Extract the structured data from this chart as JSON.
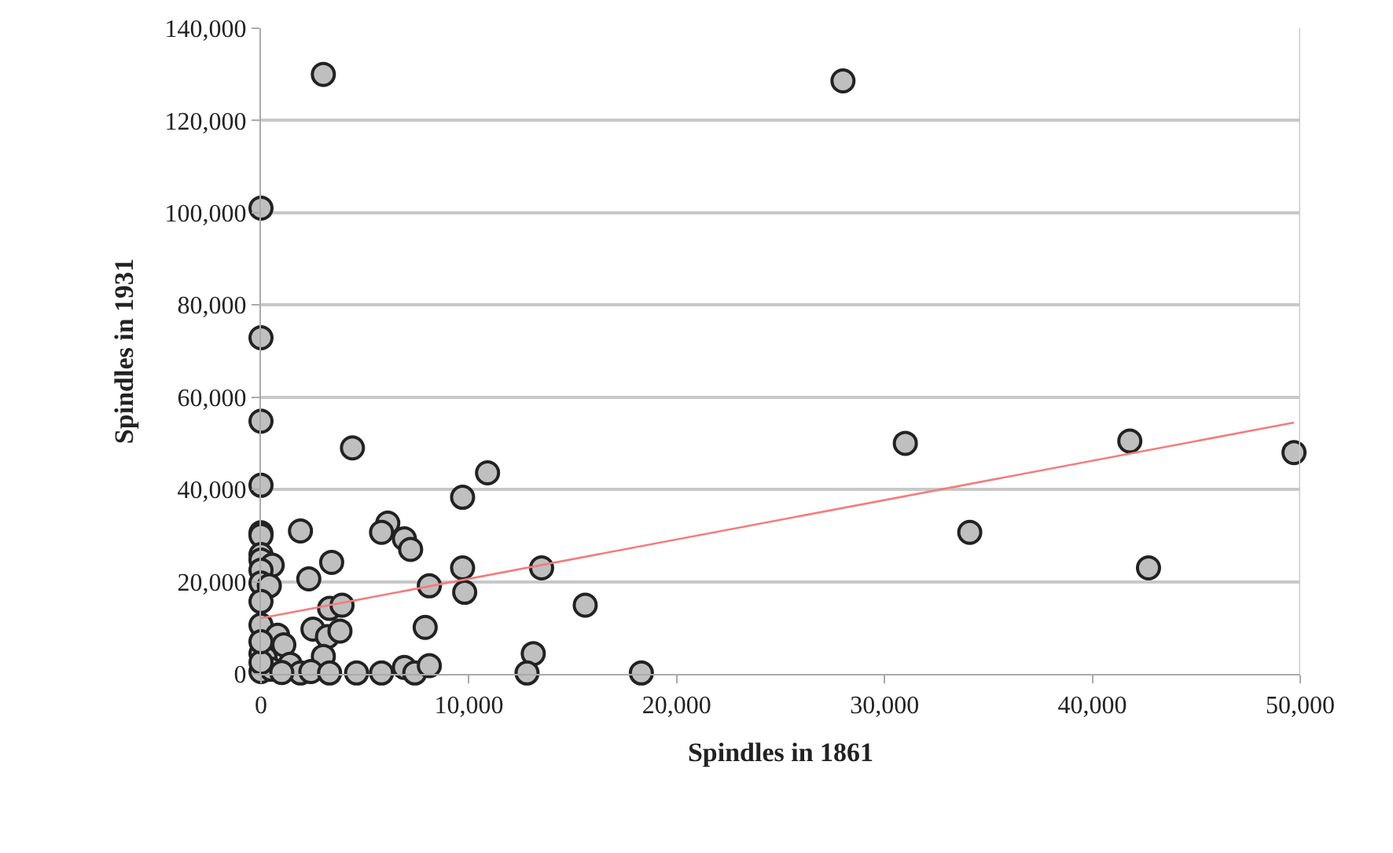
{
  "chart_data": {
    "type": "scatter",
    "xlabel": "Spindles in 1861",
    "ylabel": "Spindles in 1931",
    "xlim": [
      0,
      50000
    ],
    "ylim": [
      0,
      140000
    ],
    "xticks": [
      0,
      {
        "value": 10000,
        "label": "10,000"
      },
      {
        "value": 20000,
        "label": "20,000"
      },
      {
        "value": 30000,
        "label": "30,000"
      },
      {
        "value": 40000,
        "label": "40,000"
      },
      {
        "value": 50000,
        "label": "50,000"
      }
    ],
    "yticks": [
      0,
      {
        "value": 20000,
        "label": "20,000"
      },
      {
        "value": 40000,
        "label": "40,000"
      },
      {
        "value": 60000,
        "label": "60,000"
      },
      {
        "value": 80000,
        "label": "80,000"
      },
      {
        "value": 100000,
        "label": "100,000"
      },
      {
        "value": 120000,
        "label": "120,000"
      },
      {
        "value": 140000,
        "label": "140,000"
      }
    ],
    "grid": "y",
    "marker": "circle",
    "series": [
      {
        "color": "#bfbfbf",
        "x": [
          3000,
          28000,
          0,
          0,
          0,
          0,
          4400,
          31000,
          41800,
          49700,
          34100,
          42700,
          18300,
          10900,
          9700,
          6100,
          5800,
          6900,
          7200,
          1900,
          0,
          0,
          0,
          0,
          540,
          3400,
          2300,
          9700,
          13500,
          8100,
          9800,
          15600,
          0,
          0,
          400,
          0,
          0,
          3300,
          3900,
          2500,
          3200,
          3800,
          7900,
          800,
          1100,
          0,
          3000,
          13100,
          1400,
          0,
          1900,
          2400,
          3300,
          4600,
          5800,
          6900,
          7400,
          8100,
          12800,
          200,
          500,
          1000,
          0,
          0
        ],
        "values": [
          130000,
          128600,
          101000,
          72900,
          54800,
          40900,
          49000,
          50000,
          50500,
          48000,
          30700,
          23000,
          200,
          43600,
          38300,
          32700,
          30700,
          29300,
          27000,
          31000,
          30600,
          30000,
          25900,
          24700,
          23600,
          24200,
          20600,
          23000,
          23000,
          19100,
          17700,
          14900,
          22500,
          19700,
          19100,
          15700,
          10600,
          14200,
          14900,
          9700,
          8100,
          9300,
          10100,
          8400,
          6300,
          4400,
          3800,
          4400,
          2100,
          500,
          200,
          500,
          200,
          200,
          200,
          1400,
          200,
          1800,
          200,
          3500,
          1000,
          300,
          2500,
          7000
        ]
      },
      {
        "type": "line",
        "color": "#f47c7c",
        "marker": "none",
        "x": [
          0,
          49700
        ],
        "values": [
          12100,
          54500
        ]
      }
    ]
  }
}
